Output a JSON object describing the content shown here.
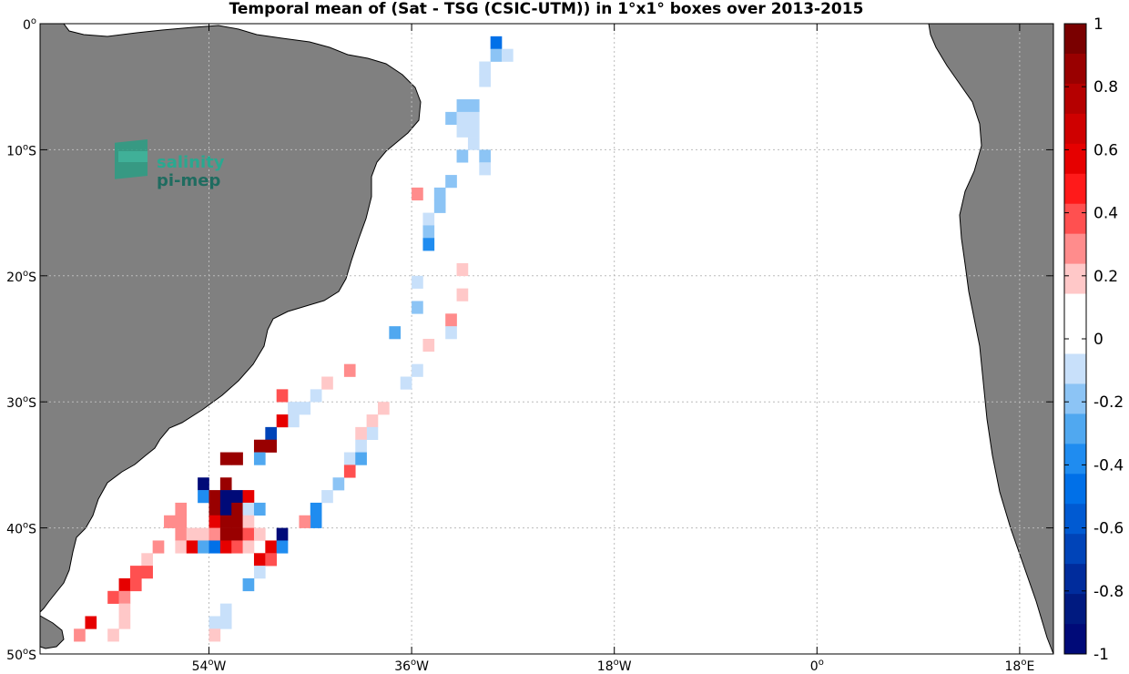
{
  "title": "Temporal mean of (Sat - TSG (CSIC-UTM)) in 1°x1° boxes over 2013-2015",
  "logo": {
    "line1": "salinity",
    "line2": "pi-mep"
  },
  "lat_ticks": [
    {
      "lat": 0,
      "deg": "0",
      "hem": ""
    },
    {
      "lat": -10,
      "deg": "10",
      "hem": "S"
    },
    {
      "lat": -20,
      "deg": "20",
      "hem": "S"
    },
    {
      "lat": -30,
      "deg": "30",
      "hem": "S"
    },
    {
      "lat": -40,
      "deg": "40",
      "hem": "S"
    },
    {
      "lat": -50,
      "deg": "50",
      "hem": "S"
    }
  ],
  "lon_ticks": [
    {
      "lon": -54,
      "deg": "54",
      "hem": "W"
    },
    {
      "lon": -36,
      "deg": "36",
      "hem": "W"
    },
    {
      "lon": -18,
      "deg": "18",
      "hem": "W"
    },
    {
      "lon": 0,
      "deg": "0",
      "hem": ""
    },
    {
      "lon": 18,
      "deg": "18",
      "hem": "E"
    }
  ],
  "colorbar": {
    "min": -1,
    "max": 1,
    "tick_labels": [
      "1",
      "0.8",
      "0.6",
      "0.4",
      "0.2",
      "0",
      "-0.2",
      "-0.4",
      "-0.6",
      "-0.8",
      "-1"
    ],
    "colors": [
      "#7a0000",
      "#990000",
      "#b50000",
      "#cf0000",
      "#e60000",
      "#ff1a1a",
      "#ff5050",
      "#ff8c8c",
      "#ffc8c8",
      "#ffffff",
      "#ffffff",
      "#c8e0fa",
      "#8cc4f5",
      "#50a8f0",
      "#1f8cf0",
      "#0070e8",
      "#005ad2",
      "#0044b8",
      "#002c9c",
      "#001a80",
      "#000a78"
    ]
  },
  "chart_data": {
    "type": "heatmap",
    "title": "Temporal mean of (Sat - TSG (CSIC-UTM)) in 1°x1° boxes over 2013-2015",
    "x_range": [
      -69,
      21
    ],
    "y_range": [
      -50,
      0
    ],
    "value_range": [
      -1,
      1
    ],
    "cells": [
      {
        "lon": -29,
        "lat": -1,
        "v": -0.5
      },
      {
        "lon": -29,
        "lat": -2,
        "v": -0.2
      },
      {
        "lon": -28,
        "lat": -2,
        "v": -0.1
      },
      {
        "lon": -30,
        "lat": -3,
        "v": -0.1
      },
      {
        "lon": -30,
        "lat": -4,
        "v": -0.1
      },
      {
        "lon": -32,
        "lat": -6,
        "v": -0.2
      },
      {
        "lon": -31,
        "lat": -6,
        "v": -0.2
      },
      {
        "lon": -33,
        "lat": -7,
        "v": -0.2
      },
      {
        "lon": -32,
        "lat": -7,
        "v": -0.1
      },
      {
        "lon": -31,
        "lat": -7,
        "v": -0.1
      },
      {
        "lon": -32,
        "lat": -8,
        "v": -0.1
      },
      {
        "lon": -31,
        "lat": -8,
        "v": -0.1
      },
      {
        "lon": -31,
        "lat": -9,
        "v": -0.1
      },
      {
        "lon": -32,
        "lat": -10,
        "v": -0.2
      },
      {
        "lon": -30,
        "lat": -10,
        "v": -0.2
      },
      {
        "lon": -30,
        "lat": -11,
        "v": -0.1
      },
      {
        "lon": -33,
        "lat": -12,
        "v": -0.2
      },
      {
        "lon": -36,
        "lat": -13,
        "v": 0.3
      },
      {
        "lon": -34,
        "lat": -13,
        "v": -0.2
      },
      {
        "lon": -34,
        "lat": -14,
        "v": -0.2
      },
      {
        "lon": -35,
        "lat": -15,
        "v": -0.1
      },
      {
        "lon": -35,
        "lat": -16,
        "v": -0.2
      },
      {
        "lon": -35,
        "lat": -17,
        "v": -0.4
      },
      {
        "lon": -32,
        "lat": -19,
        "v": 0.2
      },
      {
        "lon": -36,
        "lat": -20,
        "v": -0.1
      },
      {
        "lon": -32,
        "lat": -21,
        "v": 0.2
      },
      {
        "lon": -36,
        "lat": -22,
        "v": -0.2
      },
      {
        "lon": -33,
        "lat": -23,
        "v": 0.3
      },
      {
        "lon": -33,
        "lat": -24,
        "v": -0.1
      },
      {
        "lon": -38,
        "lat": -24,
        "v": -0.3
      },
      {
        "lon": -35,
        "lat": -25,
        "v": 0.2
      },
      {
        "lon": -36,
        "lat": -27,
        "v": -0.1
      },
      {
        "lon": -37,
        "lat": -28,
        "v": -0.1
      },
      {
        "lon": -42,
        "lat": -27,
        "v": 0.3
      },
      {
        "lon": -44,
        "lat": -28,
        "v": 0.2
      },
      {
        "lon": -45,
        "lat": -29,
        "v": -0.1
      },
      {
        "lon": -46,
        "lat": -30,
        "v": -0.1
      },
      {
        "lon": -47,
        "lat": -30,
        "v": -0.1
      },
      {
        "lon": -47,
        "lat": -31,
        "v": -0.1
      },
      {
        "lon": -48,
        "lat": -29,
        "v": 0.4
      },
      {
        "lon": -39,
        "lat": -30,
        "v": 0.2
      },
      {
        "lon": -40,
        "lat": -31,
        "v": 0.2
      },
      {
        "lon": -40,
        "lat": -32,
        "v": -0.1
      },
      {
        "lon": -41,
        "lat": -32,
        "v": 0.2
      },
      {
        "lon": -41,
        "lat": -33,
        "v": -0.1
      },
      {
        "lon": -42,
        "lat": -34,
        "v": -0.1
      },
      {
        "lon": -41,
        "lat": -34,
        "v": -0.3
      },
      {
        "lon": -42,
        "lat": -35,
        "v": 0.4
      },
      {
        "lon": -43,
        "lat": -36,
        "v": -0.2
      },
      {
        "lon": -44,
        "lat": -37,
        "v": -0.1
      },
      {
        "lon": -45,
        "lat": -38,
        "v": -0.4
      },
      {
        "lon": -45,
        "lat": -39,
        "v": -0.4
      },
      {
        "lon": -46,
        "lat": -39,
        "v": 0.3
      },
      {
        "lon": -48,
        "lat": -31,
        "v": 0.6
      },
      {
        "lon": -49,
        "lat": -32,
        "v": -0.7
      },
      {
        "lon": -50,
        "lat": -33,
        "v": 0.9
      },
      {
        "lon": -49,
        "lat": -33,
        "v": 0.9
      },
      {
        "lon": -50,
        "lat": -34,
        "v": -0.3
      },
      {
        "lon": -53,
        "lat": -34,
        "v": 0.9
      },
      {
        "lon": -52,
        "lat": -34,
        "v": 0.9
      },
      {
        "lon": -55,
        "lat": -36,
        "v": -1.0
      },
      {
        "lon": -53,
        "lat": -36,
        "v": 0.9
      },
      {
        "lon": -55,
        "lat": -37,
        "v": -0.4
      },
      {
        "lon": -54,
        "lat": -37,
        "v": 0.9
      },
      {
        "lon": -53,
        "lat": -37,
        "v": -1.0
      },
      {
        "lon": -52,
        "lat": -37,
        "v": -1.0
      },
      {
        "lon": -51,
        "lat": -37,
        "v": 0.6
      },
      {
        "lon": -57,
        "lat": -38,
        "v": 0.3
      },
      {
        "lon": -54,
        "lat": -38,
        "v": 0.9
      },
      {
        "lon": -53,
        "lat": -38,
        "v": -1.0
      },
      {
        "lon": -52,
        "lat": -38,
        "v": 0.9
      },
      {
        "lon": -51,
        "lat": -38,
        "v": -0.1
      },
      {
        "lon": -50,
        "lat": -38,
        "v": -0.3
      },
      {
        "lon": -58,
        "lat": -39,
        "v": 0.3
      },
      {
        "lon": -57,
        "lat": -39,
        "v": 0.3
      },
      {
        "lon": -54,
        "lat": -39,
        "v": 0.6
      },
      {
        "lon": -53,
        "lat": -39,
        "v": 0.9
      },
      {
        "lon": -52,
        "lat": -39,
        "v": 0.9
      },
      {
        "lon": -51,
        "lat": -39,
        "v": 0.2
      },
      {
        "lon": -57,
        "lat": -40,
        "v": 0.3
      },
      {
        "lon": -56,
        "lat": -40,
        "v": 0.2
      },
      {
        "lon": -55,
        "lat": -40,
        "v": 0.2
      },
      {
        "lon": -54,
        "lat": -40,
        "v": 0.3
      },
      {
        "lon": -53,
        "lat": -40,
        "v": 0.9
      },
      {
        "lon": -52,
        "lat": -40,
        "v": 0.9
      },
      {
        "lon": -51,
        "lat": -40,
        "v": 0.4
      },
      {
        "lon": -50,
        "lat": -40,
        "v": 0.2
      },
      {
        "lon": -48,
        "lat": -40,
        "v": -1.0
      },
      {
        "lon": -59,
        "lat": -41,
        "v": 0.3
      },
      {
        "lon": -57,
        "lat": -41,
        "v": 0.2
      },
      {
        "lon": -56,
        "lat": -41,
        "v": 0.6
      },
      {
        "lon": -55,
        "lat": -41,
        "v": -0.3
      },
      {
        "lon": -54,
        "lat": -41,
        "v": -0.5
      },
      {
        "lon": -53,
        "lat": -41,
        "v": 0.6
      },
      {
        "lon": -52,
        "lat": -41,
        "v": 0.4
      },
      {
        "lon": -51,
        "lat": -41,
        "v": 0.2
      },
      {
        "lon": -49,
        "lat": -41,
        "v": 0.6
      },
      {
        "lon": -48,
        "lat": -41,
        "v": -0.4
      },
      {
        "lon": -60,
        "lat": -42,
        "v": 0.2
      },
      {
        "lon": -50,
        "lat": -42,
        "v": 0.6
      },
      {
        "lon": -49,
        "lat": -42,
        "v": 0.4
      },
      {
        "lon": -50,
        "lat": -43,
        "v": -0.1
      },
      {
        "lon": -61,
        "lat": -43,
        "v": 0.4
      },
      {
        "lon": -60,
        "lat": -43,
        "v": 0.4
      },
      {
        "lon": -51,
        "lat": -44,
        "v": -0.3
      },
      {
        "lon": -62,
        "lat": -44,
        "v": 0.6
      },
      {
        "lon": -61,
        "lat": -44,
        "v": 0.4
      },
      {
        "lon": -63,
        "lat": -45,
        "v": 0.4
      },
      {
        "lon": -62,
        "lat": -45,
        "v": 0.3
      },
      {
        "lon": -62,
        "lat": -46,
        "v": 0.2
      },
      {
        "lon": -53,
        "lat": -46,
        "v": -0.1
      },
      {
        "lon": -53,
        "lat": -47,
        "v": -0.1
      },
      {
        "lon": -54,
        "lat": -47,
        "v": -0.1
      },
      {
        "lon": -65,
        "lat": -47,
        "v": 0.6
      },
      {
        "lon": -62,
        "lat": -47,
        "v": 0.2
      },
      {
        "lon": -54,
        "lat": -48,
        "v": 0.2
      },
      {
        "lon": -66,
        "lat": -48,
        "v": 0.3
      },
      {
        "lon": -63,
        "lat": -48,
        "v": 0.2
      }
    ]
  }
}
